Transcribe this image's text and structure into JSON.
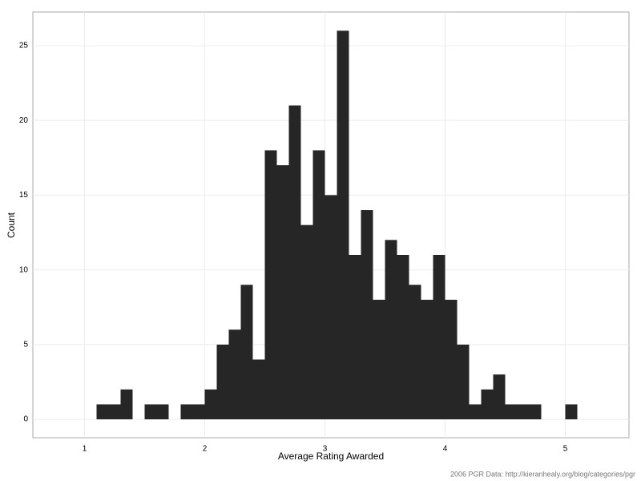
{
  "chart_data": {
    "type": "histogram",
    "x_label": "Average Rating Awarded",
    "y_label": "Count",
    "caption": "2006 PGR Data: http://kieranhealy.org/blog/categories/pgr",
    "bins": [
      1.1,
      1.2,
      1.3,
      1.4,
      1.5,
      1.6,
      1.7,
      1.8,
      1.9,
      2.0,
      2.1,
      2.2,
      2.3,
      2.4,
      2.5,
      2.6,
      2.7,
      2.8,
      2.9,
      3.0,
      3.1,
      3.2,
      3.3,
      3.4,
      3.5,
      3.6,
      3.7,
      3.8,
      3.9,
      4.0,
      4.1,
      4.2,
      4.3,
      4.4,
      4.5,
      4.6,
      4.7,
      4.8,
      4.9,
      5.0,
      5.1
    ],
    "values": [
      1,
      1,
      2,
      0,
      1,
      1,
      0,
      1,
      1,
      2,
      5,
      6,
      9,
      4,
      18,
      17,
      21,
      13,
      18,
      15,
      26,
      11,
      14,
      8,
      12,
      11,
      9,
      8,
      11,
      8,
      5,
      1,
      2,
      3,
      1,
      1,
      1,
      0,
      0,
      1
    ],
    "color": "#262626",
    "xlim": [
      0.57,
      5.53
    ],
    "xticks": [
      1,
      2,
      3,
      4,
      5
    ],
    "ylim": [
      -1.23,
      27.25
    ],
    "yticks": [
      0,
      5,
      10,
      15,
      20,
      25
    ],
    "grid": true
  }
}
